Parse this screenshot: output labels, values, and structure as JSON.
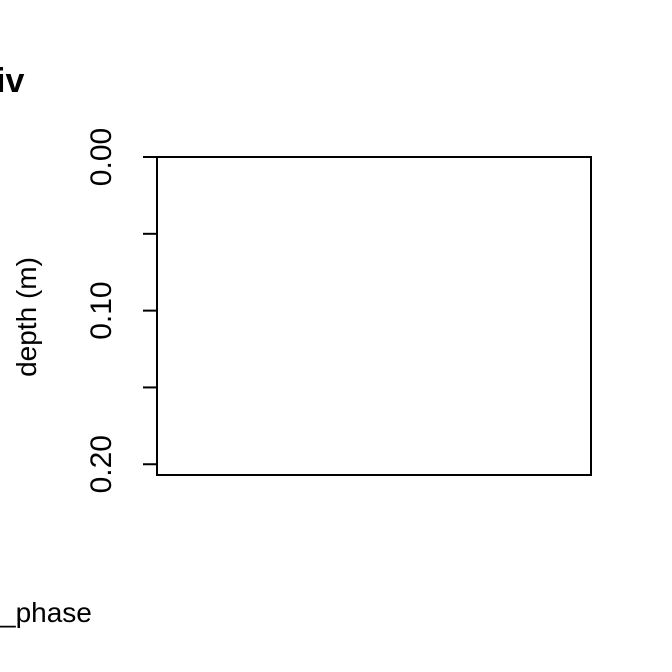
{
  "chart_data": {
    "type": "line",
    "title": "iv",
    "xlabel": "_phase",
    "ylabel": "depth (m)",
    "ylim": [
      0.0,
      0.207
    ],
    "y_inverted": true,
    "y_ticks": [
      0.0,
      0.05,
      0.1,
      0.15,
      0.2
    ],
    "y_tick_labels": [
      "0.00",
      "",
      "0.10",
      "",
      "0.20"
    ],
    "x_ticks": [],
    "grid": false,
    "legend": "none",
    "series": []
  },
  "colors": {
    "background": "#ffffff",
    "axis": "#000000"
  }
}
